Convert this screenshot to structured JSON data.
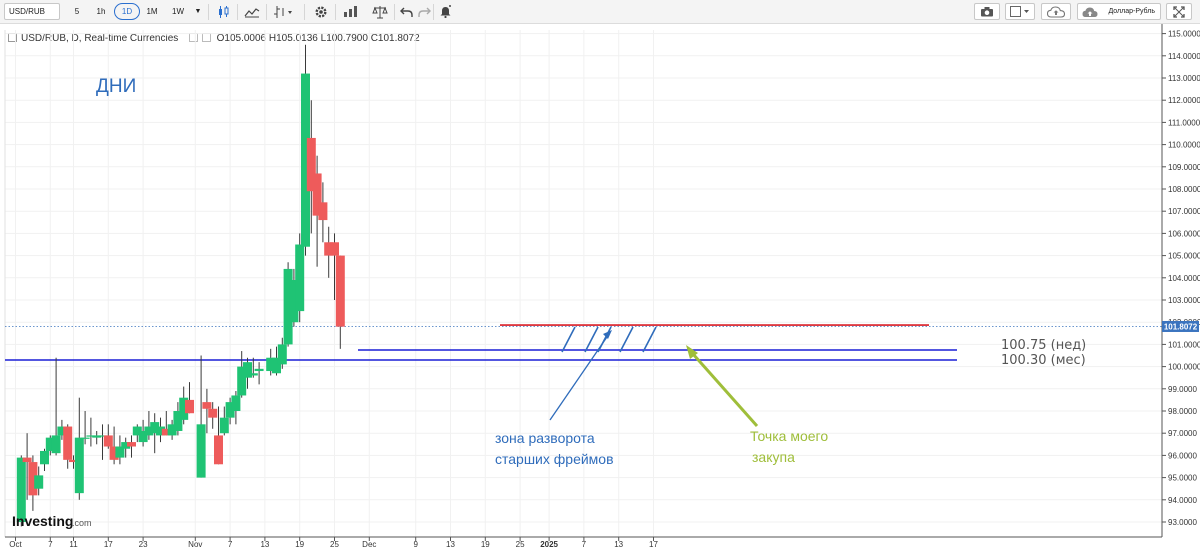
{
  "toolbar": {
    "symbol": "USD/RUB",
    "intervals": [
      "5",
      "1h",
      "1D",
      "1M",
      "1W"
    ],
    "active_interval": "1D",
    "language_label": "Доллар-Рубль"
  },
  "legend": {
    "title": "USD/RUB, D, Real-time Currencies",
    "o_label": "O",
    "o": "105.0006",
    "h_label": "H",
    "h": "105.0136",
    "l_label": "L",
    "l": "100.7900",
    "c_label": "C",
    "c": "101.8072"
  },
  "annotations": {
    "period": "ДНИ",
    "weekly_level": "100.75 (нед)",
    "monthly_level": "100.30 (мес)",
    "zone_line1": "зона разворота",
    "zone_line2": "старших фреймов",
    "buy_line1": "Точка моего",
    "buy_line2": "закупа"
  },
  "logo": {
    "brand": "Investing",
    "suffix": ".com"
  },
  "colors": {
    "up": "#1fc374",
    "down": "#ee5b5b",
    "level_blue": "#1a1ed6",
    "resistance_red": "#d81b24",
    "annotation_blue": "#2f6cbb",
    "annotation_green": "#9fbe3a",
    "price_tag": "#3b74bf"
  },
  "chart_data": {
    "type": "candlestick",
    "y_range": [
      92.6,
      115.3
    ],
    "y_ticks": [
      93,
      94,
      95,
      96,
      97,
      98,
      99,
      100,
      101,
      102,
      103,
      104,
      105,
      106,
      107,
      108,
      109,
      110,
      111,
      112,
      113,
      114,
      115
    ],
    "x_ticks": [
      {
        "label": "Oct",
        "day": 0
      },
      {
        "label": "7",
        "day": 6
      },
      {
        "label": "11",
        "day": 10
      },
      {
        "label": "17",
        "day": 16
      },
      {
        "label": "23",
        "day": 22
      },
      {
        "label": "Nov",
        "day": 31
      },
      {
        "label": "7",
        "day": 37
      },
      {
        "label": "13",
        "day": 43
      },
      {
        "label": "19",
        "day": 49
      },
      {
        "label": "25",
        "day": 55
      },
      {
        "label": "Dec",
        "day": 61
      },
      {
        "label": "9",
        "day": 69
      },
      {
        "label": "13",
        "day": 75
      },
      {
        "label": "19",
        "day": 81
      },
      {
        "label": "25",
        "day": 87
      },
      {
        "label": "2025",
        "day": 92
      },
      {
        "label": "7",
        "day": 98
      },
      {
        "label": "13",
        "day": 104
      },
      {
        "label": "17",
        "day": 110
      }
    ],
    "current_price": 101.8072,
    "current_price_label": "101.8072",
    "candles": [
      {
        "d": 1,
        "o": 93.0,
        "h": 96.0,
        "l": 92.8,
        "c": 95.9
      },
      {
        "d": 2,
        "o": 95.9,
        "h": 97.0,
        "l": 94.0,
        "c": 95.7
      },
      {
        "d": 3,
        "o": 95.7,
        "h": 96.0,
        "l": 93.5,
        "c": 94.2
      },
      {
        "d": 4,
        "o": 94.5,
        "h": 95.5,
        "l": 94.2,
        "c": 95.1
      },
      {
        "d": 5,
        "o": 95.6,
        "h": 96.3,
        "l": 95.3,
        "c": 96.2
      },
      {
        "d": 6,
        "o": 96.2,
        "h": 96.9,
        "l": 96.0,
        "c": 96.8
      },
      {
        "d": 7,
        "o": 96.1,
        "h": 100.4,
        "l": 96.0,
        "c": 96.9
      },
      {
        "d": 8,
        "o": 96.9,
        "h": 97.6,
        "l": 96.7,
        "c": 97.3
      },
      {
        "d": 9,
        "o": 97.3,
        "h": 97.4,
        "l": 95.4,
        "c": 95.8
      },
      {
        "d": 10,
        "o": 95.8,
        "h": 96.0,
        "l": 95.4,
        "c": 95.7
      },
      {
        "d": 11,
        "o": 94.3,
        "h": 98.6,
        "l": 94.0,
        "c": 96.8
      },
      {
        "d": 12,
        "o": 96.8,
        "h": 98.0,
        "l": 96.5,
        "c": 96.8
      },
      {
        "d": 13,
        "o": 96.9,
        "h": 97.7,
        "l": 96.4,
        "c": 96.9
      },
      {
        "d": 14,
        "o": 96.8,
        "h": 97.1,
        "l": 96.5,
        "c": 96.9
      },
      {
        "d": 15,
        "o": 96.9,
        "h": 97.4,
        "l": 95.8,
        "c": 96.9
      },
      {
        "d": 16,
        "o": 96.9,
        "h": 97.4,
        "l": 96.3,
        "c": 96.4
      },
      {
        "d": 17,
        "o": 96.4,
        "h": 97.3,
        "l": 95.6,
        "c": 95.8
      },
      {
        "d": 18,
        "o": 95.9,
        "h": 96.9,
        "l": 95.6,
        "c": 96.4
      },
      {
        "d": 19,
        "o": 96.3,
        "h": 96.8,
        "l": 95.9,
        "c": 96.6
      },
      {
        "d": 20,
        "o": 96.6,
        "h": 96.9,
        "l": 95.9,
        "c": 96.4
      },
      {
        "d": 21,
        "o": 96.9,
        "h": 97.4,
        "l": 96.6,
        "c": 97.3
      },
      {
        "d": 22,
        "o": 96.6,
        "h": 97.6,
        "l": 96.4,
        "c": 97.1
      },
      {
        "d": 23,
        "o": 96.9,
        "h": 98.0,
        "l": 96.7,
        "c": 97.3
      },
      {
        "d": 24,
        "o": 97.0,
        "h": 97.9,
        "l": 96.1,
        "c": 97.5
      },
      {
        "d": 25,
        "o": 96.9,
        "h": 97.7,
        "l": 96.6,
        "c": 97.3
      },
      {
        "d": 26,
        "o": 97.2,
        "h": 98.0,
        "l": 96.9,
        "c": 96.9
      },
      {
        "d": 27,
        "o": 96.9,
        "h": 97.6,
        "l": 96.7,
        "c": 97.4
      },
      {
        "d": 28,
        "o": 97.1,
        "h": 98.4,
        "l": 96.9,
        "c": 98.0
      },
      {
        "d": 29,
        "o": 97.6,
        "h": 99.1,
        "l": 97.4,
        "c": 98.6
      },
      {
        "d": 30,
        "o": 98.5,
        "h": 99.3,
        "l": 97.9,
        "c": 97.9
      },
      {
        "d": 32,
        "o": 95.0,
        "h": 100.5,
        "l": 95.0,
        "c": 97.4
      },
      {
        "d": 33,
        "o": 98.4,
        "h": 99.0,
        "l": 97.0,
        "c": 98.1
      },
      {
        "d": 34,
        "o": 98.1,
        "h": 98.4,
        "l": 97.2,
        "c": 97.7
      },
      {
        "d": 35,
        "o": 96.9,
        "h": 98.2,
        "l": 95.6,
        "c": 95.6
      },
      {
        "d": 36,
        "o": 97.0,
        "h": 98.2,
        "l": 96.9,
        "c": 97.7
      },
      {
        "d": 37,
        "o": 97.7,
        "h": 98.6,
        "l": 97.4,
        "c": 98.4
      },
      {
        "d": 38,
        "o": 98.0,
        "h": 98.9,
        "l": 97.4,
        "c": 98.7
      },
      {
        "d": 39,
        "o": 98.7,
        "h": 100.7,
        "l": 98.6,
        "c": 100.0
      },
      {
        "d": 40,
        "o": 99.5,
        "h": 100.4,
        "l": 99.0,
        "c": 100.2
      },
      {
        "d": 41,
        "o": 99.6,
        "h": 100.4,
        "l": 99.5,
        "c": 99.7
      },
      {
        "d": 42,
        "o": 99.8,
        "h": 100.2,
        "l": 99.2,
        "c": 99.9
      },
      {
        "d": 44,
        "o": 99.8,
        "h": 100.8,
        "l": 99.6,
        "c": 100.4
      },
      {
        "d": 45,
        "o": 99.7,
        "h": 100.9,
        "l": 99.6,
        "c": 100.4
      },
      {
        "d": 46,
        "o": 100.1,
        "h": 101.3,
        "l": 99.9,
        "c": 101.0
      },
      {
        "d": 47,
        "o": 101.0,
        "h": 104.7,
        "l": 100.9,
        "c": 104.4
      },
      {
        "d": 48,
        "o": 102.0,
        "h": 104.4,
        "l": 101.8,
        "c": 103.9
      },
      {
        "d": 49,
        "o": 102.5,
        "h": 106.0,
        "l": 102.0,
        "c": 105.5
      },
      {
        "d": 50,
        "o": 105.4,
        "h": 114.5,
        "l": 105.0,
        "c": 113.2
      },
      {
        "d": 51,
        "o": 110.3,
        "h": 112.0,
        "l": 106.0,
        "c": 107.9
      },
      {
        "d": 52,
        "o": 108.7,
        "h": 109.5,
        "l": 104.5,
        "c": 106.8
      },
      {
        "d": 53,
        "o": 107.4,
        "h": 108.3,
        "l": 105.6,
        "c": 106.6
      },
      {
        "d": 54,
        "o": 105.6,
        "h": 106.3,
        "l": 104.0,
        "c": 105.0
      },
      {
        "d": 55,
        "o": 105.6,
        "h": 106.0,
        "l": 103.0,
        "c": 105.0
      },
      {
        "d": 56,
        "o": 105.0,
        "h": 105.0,
        "l": 100.8,
        "c": 101.8
      }
    ]
  }
}
